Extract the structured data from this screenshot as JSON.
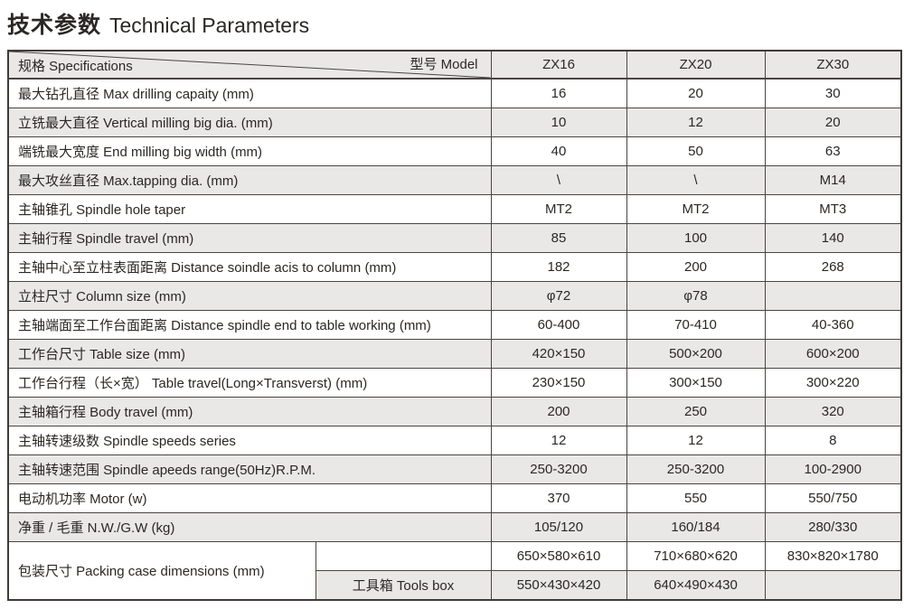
{
  "title": {
    "zh": "技术参数",
    "en": "Technical Parameters"
  },
  "table": {
    "header": {
      "spec_label": "规格 Specifications",
      "model_label": "型号 Model",
      "models": [
        "ZX16",
        "ZX20",
        "ZX30"
      ]
    },
    "rows": [
      {
        "label": "最大钻孔直径 Max drilling capaity (mm)",
        "values": [
          "16",
          "20",
          "30"
        ]
      },
      {
        "label": "立铣最大直径 Vertical milling big dia. (mm)",
        "values": [
          "10",
          "12",
          "20"
        ]
      },
      {
        "label": "端铣最大宽度 End milling big width (mm)",
        "values": [
          "40",
          "50",
          "63"
        ]
      },
      {
        "label": "最大攻丝直径 Max.tapping dia. (mm)",
        "values": [
          "\\",
          "\\",
          "M14"
        ]
      },
      {
        "label": "主轴锥孔 Spindle hole taper",
        "values": [
          "MT2",
          "MT2",
          "MT3"
        ]
      },
      {
        "label": "主轴行程 Spindle travel (mm)",
        "values": [
          "85",
          "100",
          "140"
        ]
      },
      {
        "label": "主轴中心至立柱表面距离 Distance soindle acis to column (mm)",
        "values": [
          "182",
          "200",
          "268"
        ]
      },
      {
        "label": "立柱尺寸 Column size (mm)",
        "values": [
          "φ72",
          "φ78",
          ""
        ]
      },
      {
        "label": "主轴端面至工作台面距离 Distance spindle end to table working (mm)",
        "values": [
          "60-400",
          "70-410",
          "40-360"
        ]
      },
      {
        "label": "工作台尺寸 Table size (mm)",
        "values": [
          "420×150",
          "500×200",
          "600×200"
        ]
      },
      {
        "label": "工作台行程（长×宽） Table travel(Long×Transverst) (mm)",
        "values": [
          "230×150",
          "300×150",
          "300×220"
        ]
      },
      {
        "label": "主轴箱行程 Body travel (mm)",
        "values": [
          "200",
          "250",
          "320"
        ]
      },
      {
        "label": "主轴转速级数 Spindle speeds series",
        "values": [
          "12",
          "12",
          "8"
        ]
      },
      {
        "label": "主轴转速范围 Spindle apeeds range(50Hz)R.P.M.",
        "values": [
          "250-3200",
          "250-3200",
          "100-2900"
        ]
      },
      {
        "label": "电动机功率 Motor (w)",
        "values": [
          "370",
          "550",
          "550/750"
        ]
      },
      {
        "label": "净重 / 毛重 N.W./G.W (kg)",
        "values": [
          "105/120",
          "160/184",
          "280/330"
        ]
      }
    ],
    "packing": {
      "label": "包装尺寸 Packing case dimensions (mm)",
      "machine_values": [
        "650×580×610",
        "710×680×620",
        "830×820×1780"
      ],
      "tools_label": "工具箱 Tools box",
      "tools_values": [
        "550×430×420",
        "640×490×430",
        ""
      ]
    },
    "colors": {
      "alt_row_bg": "#e9e8e6",
      "border": "#4a4542",
      "text": "#2b2724"
    }
  }
}
